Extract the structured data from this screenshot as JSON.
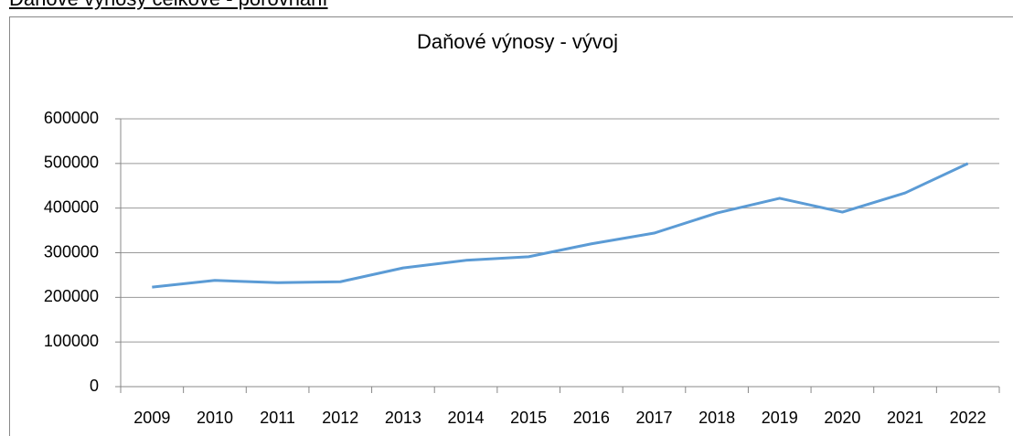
{
  "heading": "Daňové výnosy celkové - porovnání",
  "chart_data": {
    "type": "line",
    "title": "Daňové výnosy - vývoj",
    "categories": [
      "2009",
      "2010",
      "2011",
      "2012",
      "2013",
      "2014",
      "2015",
      "2016",
      "2017",
      "2018",
      "2019",
      "2020",
      "2021",
      "2022"
    ],
    "series": [
      {
        "name": "Daňové výnosy",
        "color": "#5b9bd5",
        "values": [
          223000,
          238000,
          233000,
          235000,
          266000,
          283000,
          291000,
          320000,
          344000,
          389000,
          422000,
          391000,
          434000,
          500000
        ]
      }
    ],
    "ylim": [
      0,
      600000
    ],
    "yticks": [
      0,
      100000,
      200000,
      300000,
      400000,
      500000,
      600000
    ],
    "grid": true,
    "legend": false
  }
}
